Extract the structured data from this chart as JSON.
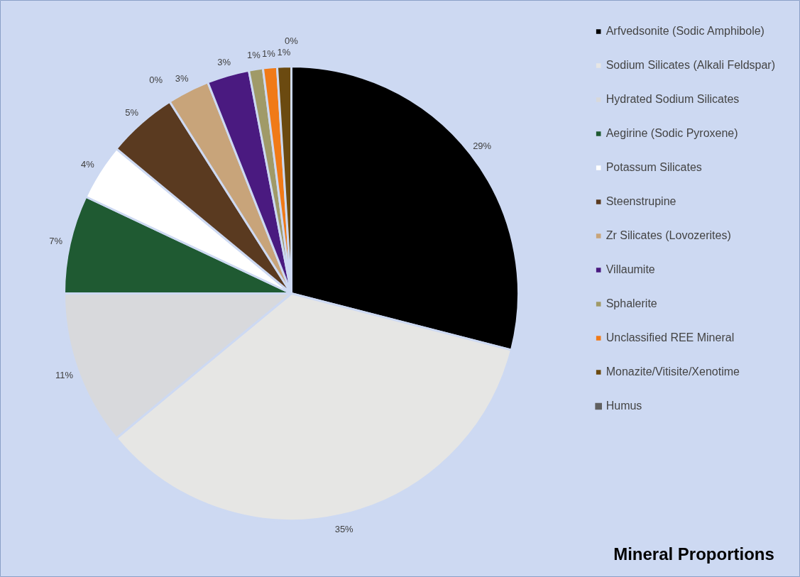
{
  "chart_data": {
    "type": "pie",
    "title": "Mineral Proportions",
    "categories": [
      "Arfvedsonite (Sodic Amphibole)",
      "Sodium Silicates (Alkali Feldspar)",
      "Hydrated Sodium Silicates",
      "Aegirine (Sodic Pyroxene)",
      "Potassum Silicates",
      "Steenstrupine",
      null,
      "Zr Silicates (Lovozerites)",
      "Villaumite",
      "Sphalerite",
      "Unclassified REE Mineral",
      "Monazite/Vitisite/Xenotime",
      "Humus"
    ],
    "values": [
      29,
      35,
      11,
      7,
      4,
      5,
      0,
      3,
      3,
      1,
      1,
      1,
      0
    ],
    "value_labels": [
      "29%",
      "35%",
      "11%",
      "7%",
      "4%",
      "5%",
      "0%",
      "3%",
      "3%",
      "1%",
      "1%",
      "1%",
      "0%"
    ],
    "colors": [
      "#000000",
      "#e6e6e4",
      "#d8d9dc",
      "#1f5a32",
      "#ffffff",
      "#5a3a20",
      "#b0b0b0",
      "#c8a47a",
      "#4a1a80",
      "#a09a68",
      "#f07a18",
      "#6b4a10",
      "#606060"
    ],
    "legend": "right"
  }
}
